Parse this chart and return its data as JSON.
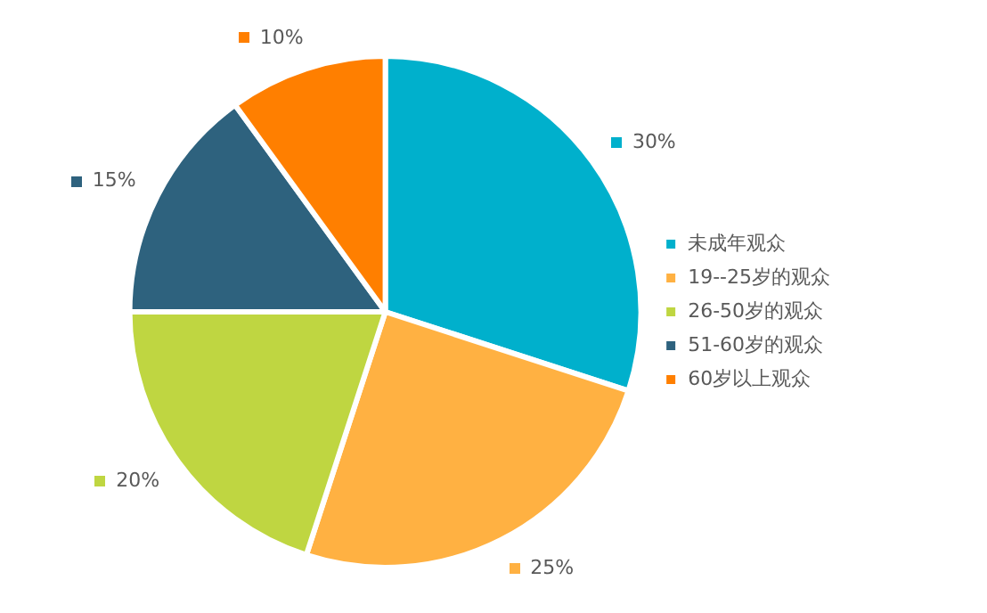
{
  "chart_data": {
    "type": "pie",
    "categories": [
      "未成年观众",
      "19--25岁的观众",
      "26-50岁的观众",
      "51-60岁的观众",
      "60岁以上观众"
    ],
    "values": [
      30,
      25,
      20,
      15,
      10
    ],
    "colors": [
      "#00b0cc",
      "#ffb142",
      "#bfd641",
      "#2e627e",
      "#ff7f00"
    ],
    "value_labels": [
      "30%",
      "25%",
      "20%",
      "15%",
      "10%"
    ],
    "legend": "right"
  }
}
